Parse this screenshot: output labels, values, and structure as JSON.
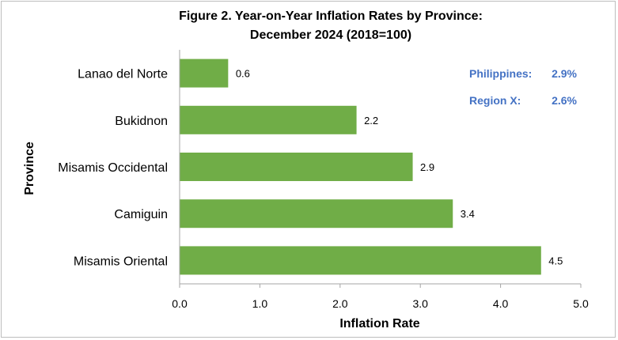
{
  "chart_data": {
    "type": "bar",
    "orientation": "horizontal",
    "title": [
      "Figure 2. Year-on-Year Inflation Rates by Province:",
      "December 2024 (2018=100)"
    ],
    "xlabel": "Inflation Rate",
    "ylabel": "Province",
    "categories": [
      "Lanao del Norte",
      "Bukidnon",
      "Misamis Occidental",
      "Camiguin",
      "Misamis Oriental"
    ],
    "values": [
      0.6,
      2.2,
      2.9,
      3.4,
      4.5
    ],
    "data_labels": [
      "0.6",
      "2.2",
      "2.9",
      "3.4",
      "4.5"
    ],
    "xlim": [
      0,
      5
    ],
    "xticks": [
      "0.0",
      "1.0",
      "2.0",
      "3.0",
      "4.0",
      "5.0"
    ],
    "bar_color": "#70ad47",
    "grid": false,
    "annotations": [
      {
        "label": "Philippines:",
        "value": "2.9%",
        "color": "#4472c4"
      },
      {
        "label": "Region X:",
        "value": "2.6%",
        "color": "#4472c4"
      }
    ]
  }
}
